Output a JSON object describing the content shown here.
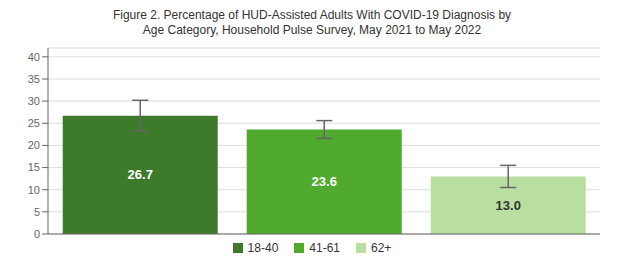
{
  "chart_data": {
    "type": "bar",
    "title": "Figure 2. Percentage of HUD-Assisted Adults With COVID-19 Diagnosis by\nAge Category, Household Pulse Survey, May 2021 to May 2022",
    "categories": [
      "18-40",
      "41-61",
      "62+"
    ],
    "values": [
      26.7,
      23.6,
      13.0
    ],
    "value_labels": [
      "26.7",
      "23.6",
      "13.0"
    ],
    "data_labels": true,
    "errors_upper": [
      3.5,
      2.0,
      2.5
    ],
    "errors_lower": [
      3.5,
      2.0,
      2.5
    ],
    "colors": [
      "#3d7a2a",
      "#4faa2e",
      "#b8dea0"
    ],
    "ylim": [
      0,
      42
    ],
    "yticks": [
      0,
      5,
      10,
      15,
      20,
      25,
      30,
      35,
      40
    ],
    "grid": true,
    "legend": "bottom",
    "tick_labels": "y"
  }
}
